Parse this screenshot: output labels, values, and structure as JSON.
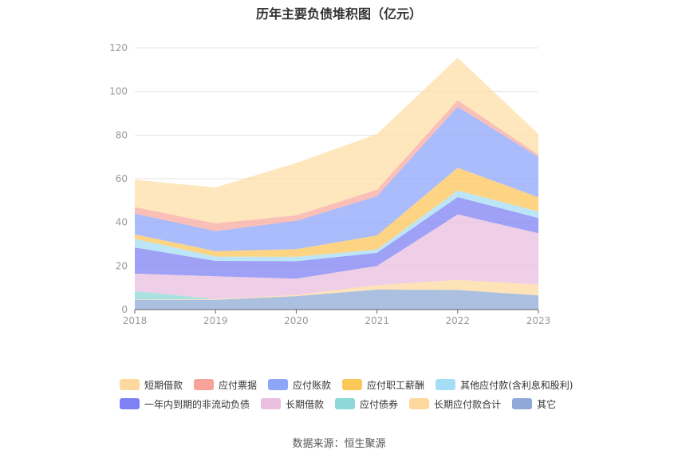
{
  "title": "历年主要负债堆积图（亿元）",
  "source": "数据来源：恒生聚源",
  "chart_data": {
    "type": "area",
    "stacked": true,
    "title": "历年主要负债堆积图（亿元）",
    "x": [
      "2018",
      "2019",
      "2020",
      "2021",
      "2022",
      "2023"
    ],
    "ylim": [
      0,
      120
    ],
    "yticks": [
      "0",
      "20",
      "40",
      "60",
      "80",
      "100",
      "120"
    ],
    "grid": true,
    "legend_position": "bottom",
    "series": [
      {
        "name": "其它",
        "color": "#8fa9d6",
        "values": [
          4.5,
          4.5,
          6.2,
          9.2,
          9.0,
          6.5
        ]
      },
      {
        "name": "长期应付款合计",
        "color": "#fdd9a0",
        "values": [
          0.2,
          0.3,
          0.5,
          2.0,
          4.6,
          5.0
        ]
      },
      {
        "name": "应付债券",
        "color": "#8dd8d8",
        "values": [
          3.8,
          0,
          0,
          0,
          0,
          0
        ]
      },
      {
        "name": "长期借款",
        "color": "#e9bedf",
        "values": [
          8.0,
          10.5,
          7.5,
          8.8,
          30.0,
          23.5
        ]
      },
      {
        "name": "一年内到期的非流动负债",
        "color": "#7d81f3",
        "values": [
          12.0,
          7.0,
          8.0,
          6.0,
          8.0,
          7.0
        ]
      },
      {
        "name": "其他应付款(含利息和股利)",
        "color": "#a6ddf6",
        "values": [
          4.0,
          2.0,
          2.0,
          1.5,
          3.0,
          3.0
        ]
      },
      {
        "name": "应付职工薪酬",
        "color": "#fcc659",
        "values": [
          2.0,
          2.5,
          3.5,
          6.5,
          10.4,
          6.5
        ]
      },
      {
        "name": "应付账款",
        "color": "#8ea6f9",
        "values": [
          9.5,
          9.2,
          13.0,
          18.0,
          28.0,
          18.5
        ]
      },
      {
        "name": "应付票据",
        "color": "#f8a99f",
        "values": [
          3.0,
          3.5,
          2.5,
          3.0,
          3.0,
          1.0
        ]
      },
      {
        "name": "短期借款",
        "color": "#fddfa5",
        "values": [
          12.5,
          16.5,
          24.0,
          25.5,
          19.5,
          9.5
        ]
      }
    ]
  },
  "legend": {
    "rows": [
      [
        {
          "label": "短期借款",
          "color": "#fdd9a0"
        },
        {
          "label": "应付票据",
          "color": "#f7a399"
        },
        {
          "label": "应付账款",
          "color": "#8ea6f9"
        },
        {
          "label": "应付职工薪酬",
          "color": "#fcc659"
        },
        {
          "label": "其他应付款(含利息和股利)",
          "color": "#a6ddf6"
        }
      ],
      [
        {
          "label": "一年内到期的非流动负债",
          "color": "#7d81f3"
        },
        {
          "label": "长期借款",
          "color": "#e9bedf"
        },
        {
          "label": "应付债券",
          "color": "#8dd8d8"
        },
        {
          "label": "长期应付款合计",
          "color": "#fdd9a0"
        },
        {
          "label": "其它",
          "color": "#8fa9d6"
        }
      ]
    ]
  }
}
